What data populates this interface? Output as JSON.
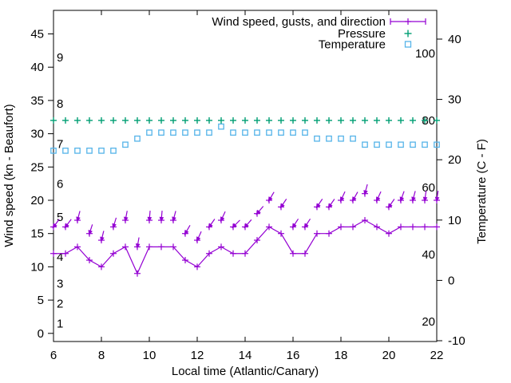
{
  "chart_data": {
    "type": "line",
    "title": "",
    "xlabel": "Local time (Atlantic/Canary)",
    "x_range": [
      6,
      22
    ],
    "x_ticks": [
      6,
      8,
      10,
      12,
      14,
      16,
      18,
      20,
      22
    ],
    "left_axis": {
      "label": "Wind speed (kn - Beaufort)",
      "ticks": [
        0,
        5,
        10,
        15,
        20,
        25,
        30,
        35,
        40,
        45
      ],
      "range": [
        -1.2,
        48.5
      ]
    },
    "right_axis": {
      "label": "Temperature (C - F)",
      "ticks": [
        -10,
        0,
        10,
        20,
        30,
        40
      ],
      "range": [
        -10.1,
        44.8
      ]
    },
    "beaufort_scale_labels": [
      {
        "label": "1",
        "kn": 1
      },
      {
        "label": "2",
        "kn": 4
      },
      {
        "label": "3",
        "kn": 7
      },
      {
        "label": "4",
        "kn": 11
      },
      {
        "label": "5",
        "kn": 17
      },
      {
        "label": "6",
        "kn": 22
      },
      {
        "label": "7",
        "kn": 28
      },
      {
        "label": "8",
        "kn": 34
      },
      {
        "label": "9",
        "kn": 41
      }
    ],
    "fahrenheit_scale_labels": [
      {
        "label": "20",
        "f": 20
      },
      {
        "label": "40",
        "f": 40
      },
      {
        "label": "60",
        "f": 60
      },
      {
        "label": "80",
        "f": 80
      },
      {
        "label": "100",
        "f": 100
      }
    ],
    "x_hours": [
      6,
      6.5,
      7,
      7.5,
      8,
      8.5,
      9,
      9.5,
      10,
      10.5,
      11,
      11.5,
      12,
      12.5,
      13,
      13.5,
      14,
      14.5,
      15,
      15.5,
      16,
      16.5,
      17,
      17.5,
      18,
      18.5,
      19,
      19.5,
      20,
      20.5,
      21,
      21.5,
      22
    ],
    "series": [
      {
        "name": "Wind speed, gusts, and direction",
        "color": "#9400d3",
        "style": "line with plus markers; gust plus markers with wind-direction arrows",
        "legend_sample": "errorbar",
        "wind_kn": [
          12,
          12,
          13,
          11,
          10,
          12,
          13,
          9,
          13,
          13,
          13,
          11,
          10,
          12,
          13,
          12,
          12,
          14,
          16,
          15,
          12,
          12,
          15,
          15,
          16,
          16,
          17,
          16,
          15,
          16,
          16,
          16,
          16
        ],
        "gust_kn": [
          16,
          16,
          17,
          15,
          14,
          16,
          17,
          13,
          17,
          17,
          17,
          15,
          14,
          16,
          17,
          16,
          16,
          18,
          20,
          19,
          16,
          16,
          19,
          19,
          20,
          20,
          21,
          20,
          19,
          20,
          20,
          20,
          20
        ],
        "direction_deg_screen": [
          127,
          127,
          105,
          108,
          104,
          107,
          101,
          100,
          95,
          95,
          105,
          120,
          115,
          125,
          115,
          135,
          131,
          130,
          121,
          124,
          123,
          123,
          124,
          125,
          115,
          120,
          105,
          115,
          125,
          110,
          105,
          98,
          98
        ]
      },
      {
        "name": "Pressure",
        "color": "#009e73",
        "style": "plus markers",
        "legend_sample": "plus",
        "plotted_level_left_axis_units": 32,
        "note": "constant row of markers; pressure value scale not shown on chart"
      },
      {
        "name": "Temperature",
        "color": "#56b4e9",
        "style": "open square markers",
        "legend_sample": "square",
        "celsius": [
          21.5,
          21.5,
          21.5,
          21.5,
          21.5,
          21.5,
          22.5,
          23.5,
          24.5,
          24.5,
          24.5,
          24.5,
          24.5,
          24.5,
          25.5,
          24.5,
          24.5,
          24.5,
          24.5,
          24.5,
          24.5,
          24.5,
          23.5,
          23.5,
          23.5,
          23.5,
          22.5,
          22.5,
          22.5,
          22.5,
          22.5,
          22.5,
          22.5
        ]
      }
    ],
    "legend": {
      "position": "top-right-inside",
      "entries": [
        "Wind speed, gusts, and direction",
        "Pressure",
        "Temperature"
      ]
    },
    "colors": {
      "wind": "#9400d3",
      "pressure": "#009e73",
      "temperature": "#56b4e9",
      "axis": "#000000",
      "background": "#ffffff"
    },
    "grid": "off"
  }
}
